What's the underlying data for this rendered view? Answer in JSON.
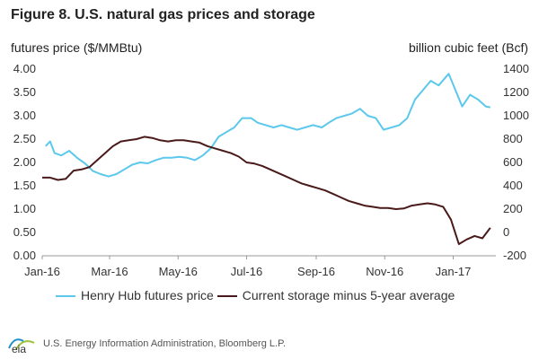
{
  "figure": {
    "title": "Figure 8. U.S. natural gas prices and storage",
    "left_axis_label": "futures price ($/MMBtu)",
    "right_axis_label": "billion cubic feet (Bcf)",
    "source": "U.S. Energy Information Administration, Bloomberg L.P.",
    "logo_text": "eia"
  },
  "chart_data": {
    "type": "line",
    "x_ticks": [
      "Jan-16",
      "Mar-16",
      "May-16",
      "Jul-16",
      "Sep-16",
      "Nov-16",
      "Jan-17"
    ],
    "y_left": {
      "range": [
        0,
        4
      ],
      "ticks": [
        "0.00",
        "0.50",
        "1.00",
        "1.50",
        "2.00",
        "2.50",
        "3.00",
        "3.50",
        "4.00"
      ]
    },
    "y_right": {
      "range": [
        -200,
        1400
      ],
      "ticks": [
        "-200",
        "0",
        "200",
        "400",
        "600",
        "800",
        "1000",
        "1200",
        "1400"
      ]
    },
    "series": [
      {
        "name": "Henry Hub futures price",
        "axis": "left",
        "color": "#5bc8ec",
        "x": [
          "2016-01-04",
          "2016-01-08",
          "2016-01-12",
          "2016-01-18",
          "2016-01-25",
          "2016-02-01",
          "2016-02-08",
          "2016-02-15",
          "2016-02-22",
          "2016-02-29",
          "2016-03-07",
          "2016-03-14",
          "2016-03-21",
          "2016-03-28",
          "2016-04-04",
          "2016-04-11",
          "2016-04-18",
          "2016-04-25",
          "2016-05-02",
          "2016-05-09",
          "2016-05-16",
          "2016-05-23",
          "2016-05-30",
          "2016-06-06",
          "2016-06-13",
          "2016-06-20",
          "2016-06-27",
          "2016-07-05",
          "2016-07-11",
          "2016-07-18",
          "2016-07-25",
          "2016-08-01",
          "2016-08-08",
          "2016-08-15",
          "2016-08-22",
          "2016-08-29",
          "2016-09-06",
          "2016-09-12",
          "2016-09-19",
          "2016-09-26",
          "2016-10-03",
          "2016-10-10",
          "2016-10-17",
          "2016-10-24",
          "2016-10-31",
          "2016-11-07",
          "2016-11-14",
          "2016-11-21",
          "2016-11-28",
          "2016-12-05",
          "2016-12-12",
          "2016-12-19",
          "2016-12-28",
          "2017-01-03",
          "2017-01-09",
          "2017-01-16",
          "2017-01-23",
          "2017-01-30",
          "2017-02-03"
        ],
        "values": [
          2.35,
          2.45,
          2.2,
          2.15,
          2.25,
          2.1,
          1.98,
          1.82,
          1.75,
          1.7,
          1.75,
          1.85,
          1.95,
          2.0,
          1.98,
          2.05,
          2.1,
          2.1,
          2.12,
          2.1,
          2.05,
          2.15,
          2.3,
          2.55,
          2.65,
          2.75,
          2.95,
          2.95,
          2.85,
          2.8,
          2.75,
          2.8,
          2.75,
          2.7,
          2.75,
          2.8,
          2.75,
          2.85,
          2.95,
          3.0,
          3.05,
          3.15,
          3.0,
          2.95,
          2.7,
          2.75,
          2.8,
          2.95,
          3.35,
          3.55,
          3.75,
          3.65,
          3.9,
          3.55,
          3.2,
          3.45,
          3.35,
          3.2,
          3.18
        ]
      },
      {
        "name": "Current storage minus 5-year average",
        "axis": "right",
        "color": "#4a1a1a",
        "x": [
          "2016-01-01",
          "2016-01-08",
          "2016-01-15",
          "2016-01-22",
          "2016-01-29",
          "2016-02-05",
          "2016-02-12",
          "2016-02-19",
          "2016-02-26",
          "2016-03-04",
          "2016-03-11",
          "2016-03-18",
          "2016-03-25",
          "2016-04-01",
          "2016-04-08",
          "2016-04-15",
          "2016-04-22",
          "2016-04-29",
          "2016-05-06",
          "2016-05-13",
          "2016-05-20",
          "2016-05-27",
          "2016-06-03",
          "2016-06-10",
          "2016-06-17",
          "2016-06-24",
          "2016-07-01",
          "2016-07-08",
          "2016-07-15",
          "2016-07-22",
          "2016-07-29",
          "2016-08-05",
          "2016-08-12",
          "2016-08-19",
          "2016-08-26",
          "2016-09-02",
          "2016-09-09",
          "2016-09-16",
          "2016-09-23",
          "2016-09-30",
          "2016-10-07",
          "2016-10-14",
          "2016-10-21",
          "2016-10-28",
          "2016-11-04",
          "2016-11-11",
          "2016-11-18",
          "2016-11-25",
          "2016-12-02",
          "2016-12-09",
          "2016-12-16",
          "2016-12-23",
          "2016-12-30",
          "2017-01-06",
          "2017-01-13",
          "2017-01-20",
          "2017-01-27",
          "2017-02-03"
        ],
        "values": [
          470,
          470,
          450,
          460,
          530,
          540,
          560,
          620,
          680,
          740,
          780,
          790,
          800,
          820,
          810,
          790,
          780,
          790,
          790,
          780,
          770,
          740,
          720,
          700,
          680,
          650,
          600,
          590,
          570,
          540,
          510,
          480,
          450,
          420,
          400,
          380,
          360,
          330,
          300,
          270,
          250,
          230,
          220,
          210,
          210,
          200,
          205,
          230,
          240,
          250,
          240,
          220,
          110,
          -100,
          -60,
          -30,
          -50,
          40
        ]
      }
    ]
  }
}
